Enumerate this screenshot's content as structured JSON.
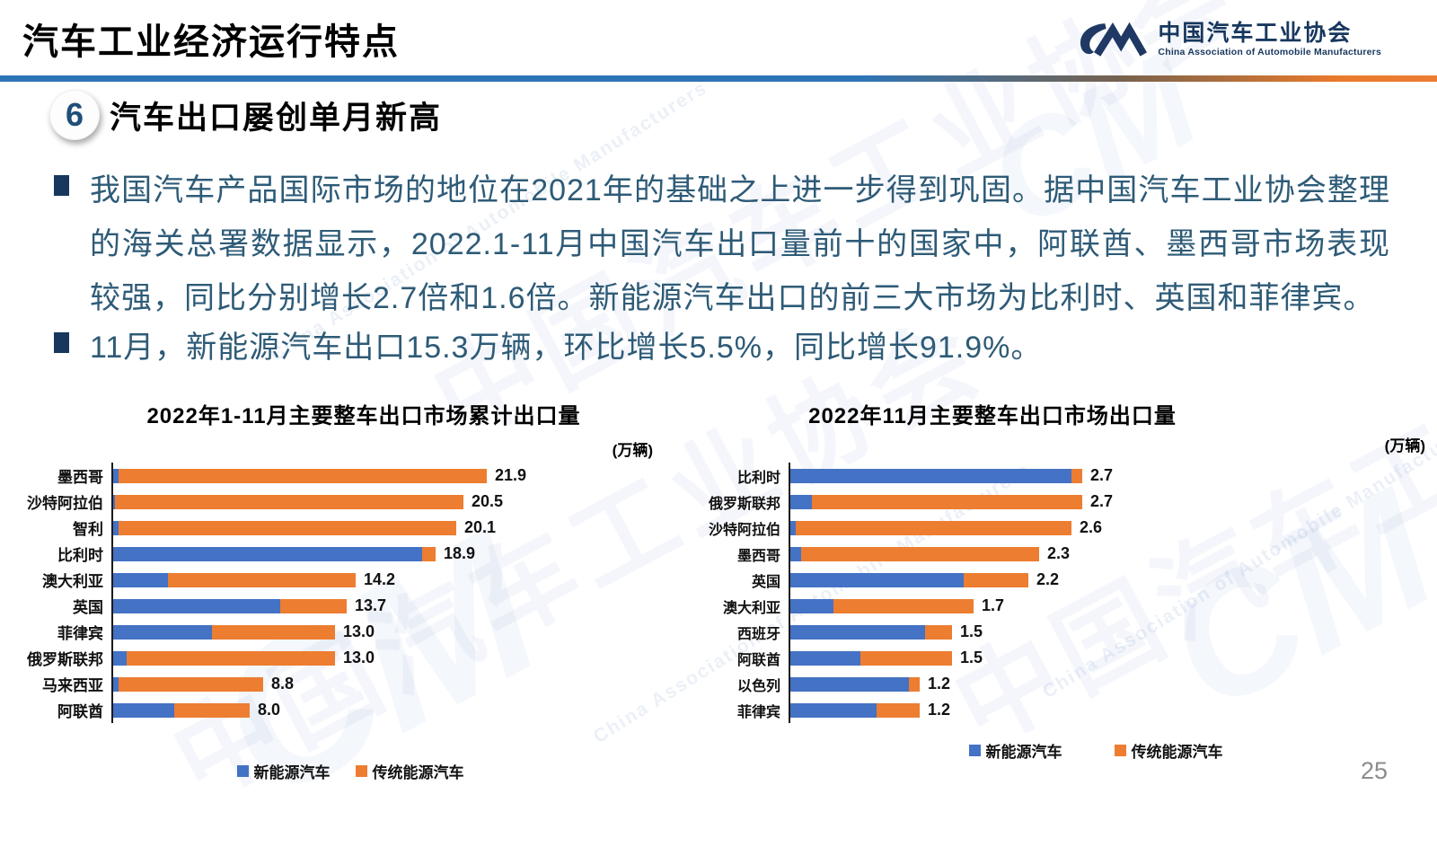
{
  "header": {
    "title": "汽车工业经济运行特点",
    "logo": {
      "mark": "CM",
      "name_cn": "中国汽车工业协会",
      "name_en": "China Association of Automobile Manufacturers"
    }
  },
  "section": {
    "number": "6",
    "title": "汽车出口屡创单月新高"
  },
  "bullets": [
    {
      "text": "我国汽车产品国际市场的地位在2021年的基础之上进一步得到巩固。据中国汽车工业协会整理的海关总署数据显示，2022.1-11月中国汽车出口量前十的国家中，阿联酋、墨西哥市场表现较强，同比分别增长2.7倍和1.6倍。新能源汽车出口的前三大市场为比利时、英国和菲律宾。"
    },
    {
      "text": "11月，新能源汽车出口15.3万辆，环比增长5.5%，同比增长91.9%。"
    }
  ],
  "colors": {
    "nev_blue": "#4472C4",
    "ice_orange": "#ED7D31"
  },
  "chart_data": [
    {
      "type": "bar",
      "orientation": "horizontal",
      "stacked": true,
      "title": "2022年1-11月主要整车出口市场累计出口量",
      "unit_label": "(万辆)",
      "legend_position": "bottom",
      "categories": [
        "墨西哥",
        "沙特阿拉伯",
        "智利",
        "比利时",
        "澳大利亚",
        "英国",
        "菲律宾",
        "俄罗斯联邦",
        "马来西亚",
        "阿联酋"
      ],
      "series": [
        {
          "name": "新能源汽车",
          "color": "#4472C4",
          "values": [
            0.3,
            0.1,
            0.3,
            18.1,
            3.2,
            9.8,
            5.8,
            0.8,
            0.3,
            3.6
          ]
        },
        {
          "name": "传统能源汽车",
          "color": "#ED7D31",
          "values": [
            21.6,
            20.4,
            19.8,
            0.8,
            11.0,
            3.9,
            7.2,
            12.2,
            8.5,
            4.4
          ]
        }
      ],
      "totals": [
        21.9,
        20.5,
        20.1,
        18.9,
        14.2,
        13.7,
        13.0,
        13.0,
        8.8,
        8.0
      ]
    },
    {
      "type": "bar",
      "orientation": "horizontal",
      "stacked": true,
      "title": "2022年11月主要整车出口市场出口量",
      "unit_label": "(万辆)",
      "legend_position": "bottom",
      "categories": [
        "比利时",
        "俄罗斯联邦",
        "沙特阿拉伯",
        "墨西哥",
        "英国",
        "澳大利亚",
        "西班牙",
        "阿联酋",
        "以色列",
        "菲律宾"
      ],
      "series": [
        {
          "name": "新能源汽车",
          "color": "#4472C4",
          "values": [
            2.6,
            0.2,
            0.05,
            0.1,
            1.6,
            0.4,
            1.25,
            0.65,
            1.1,
            0.8
          ]
        },
        {
          "name": "传统能源汽车",
          "color": "#ED7D31",
          "values": [
            0.1,
            2.5,
            2.55,
            2.2,
            0.6,
            1.3,
            0.25,
            0.85,
            0.1,
            0.4
          ]
        }
      ],
      "totals": [
        2.7,
        2.7,
        2.6,
        2.3,
        2.2,
        1.7,
        1.5,
        1.5,
        1.2,
        1.2
      ]
    }
  ],
  "watermark": {
    "text_cn": "中国汽车工业协会",
    "text_en": "China Association of Automobile Manufacturers",
    "mark": "CM"
  },
  "page": {
    "number": "25"
  }
}
